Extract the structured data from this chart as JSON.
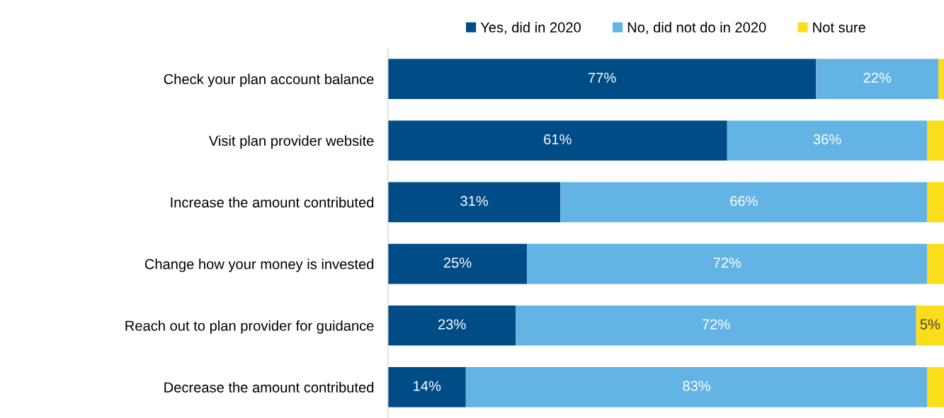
{
  "chart_data": {
    "type": "bar",
    "orientation": "horizontal",
    "stacked": true,
    "categories": [
      "Check your plan account balance",
      "Visit plan provider website",
      "Increase the amount contributed",
      "Change how your money is invested",
      "Reach out to plan provider for guidance",
      "Decrease the amount contributed"
    ],
    "series": [
      {
        "name": "Yes, did in 2020",
        "color": "#004c87",
        "values": [
          77,
          61,
          31,
          25,
          23,
          14
        ],
        "value_labels": [
          "77%",
          "61%",
          "31%",
          "25%",
          "23%",
          "14%"
        ]
      },
      {
        "name": "No, did not do in 2020",
        "color": "#63b4e4",
        "values": [
          22,
          36,
          66,
          72,
          72,
          83
        ],
        "value_labels": [
          "22%",
          "36%",
          "66%",
          "72%",
          "72%",
          "83%"
        ]
      },
      {
        "name": "Not sure",
        "color": "#fbdd1b",
        "values": [
          1,
          3,
          3,
          3,
          5,
          3
        ],
        "value_labels": [
          null,
          null,
          null,
          null,
          "5%",
          null
        ]
      }
    ],
    "xlim": [
      0,
      100
    ],
    "tick_labels": "y",
    "grid": false,
    "legend": "top"
  }
}
